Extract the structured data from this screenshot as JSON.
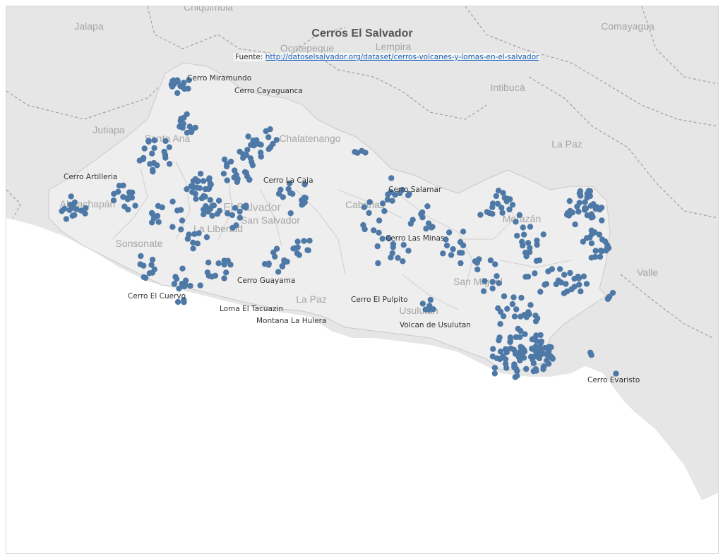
{
  "title": "Cerros El Salvador",
  "source": {
    "label": "Fuente:",
    "url": "http://datoselsalvador.org/dataset/cerros-volcanes-y-lomas-en-el-salvador"
  },
  "colors": {
    "marker": "#4e79a7",
    "land": "#e6e6e6",
    "land_inner": "#eeeeee",
    "water": "#ffffff",
    "border": "#bfbfbf"
  },
  "region_labels": [
    "Chiquimula",
    "Jalapa",
    "Ocotepeque",
    "Lempira",
    "Comayagua",
    "Intibucá",
    "Jutiapa",
    "Santa Ana",
    "Chalatenango",
    "La Paz",
    "Ahuachapán",
    "El Salvador",
    "San Salvador",
    "La Libertad",
    "Sonsonate",
    "Cabañas",
    "Morazán",
    "San Miguel",
    "Usulután",
    "Valle",
    "La Paz"
  ],
  "labeled_peaks": [
    "Cerro Miramundo",
    "Cerro Cayaguanca",
    "Cerro Artilleria",
    "Cerro La Caja",
    "Cerro Salamar",
    "Cerro Las Minas",
    "Cerro Guayama",
    "Cerro El Cuervo",
    "Cerro El Pulpito",
    "Loma El Tacuazin",
    "Montana La Hulera",
    "Volcan de Usulutan",
    "Cerro Evaristo"
  ],
  "marker_count_approx": 700
}
